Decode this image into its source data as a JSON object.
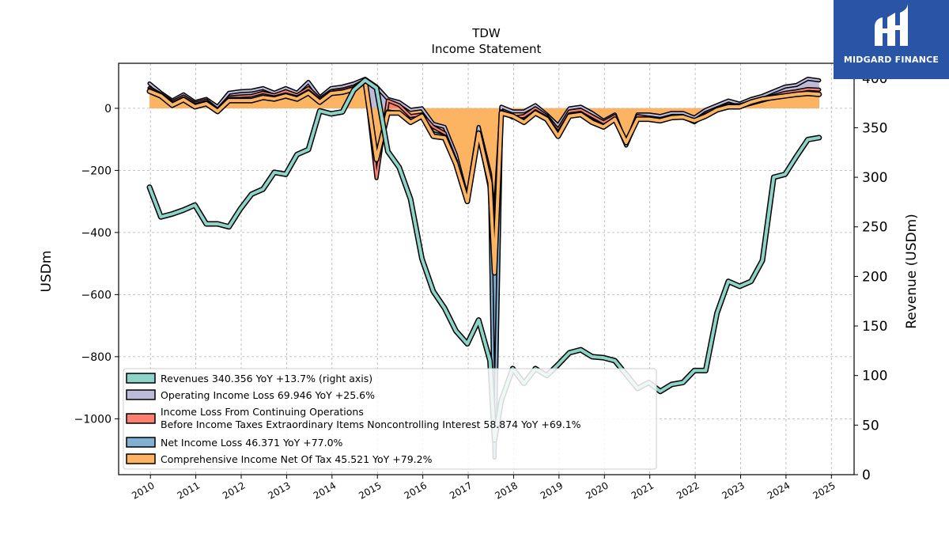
{
  "chart_data": {
    "type": "line",
    "title": "TDW",
    "subtitle": "Income Statement",
    "ylabel": "USDm",
    "ylabel_right": "Revenue (USDm)",
    "ylim": [
      -1180,
      145
    ],
    "ylim_right": [
      0,
      415
    ],
    "yticks": [
      -1000,
      -800,
      -600,
      -400,
      -200,
      0
    ],
    "yticks_right": [
      0,
      50,
      100,
      150,
      200,
      250,
      300,
      350,
      400
    ],
    "xlim": [
      2009.3,
      2025.5
    ],
    "xticks": [
      2010,
      2011,
      2012,
      2013,
      2014,
      2015,
      2016,
      2017,
      2018,
      2019,
      2020,
      2021,
      2022,
      2023,
      2024,
      2025
    ],
    "grid": true,
    "legend_position": "lower-left",
    "colors": {
      "revenues": "#8dd3c7",
      "operating": "#bebada",
      "pretax": "#fb8072",
      "net": "#80b1d3",
      "comprehensive": "#fdb462"
    },
    "x": [
      2009.98,
      2010.23,
      2010.48,
      2010.73,
      2010.98,
      2011.23,
      2011.48,
      2011.73,
      2011.98,
      2012.23,
      2012.48,
      2012.73,
      2012.98,
      2013.23,
      2013.48,
      2013.73,
      2013.98,
      2014.23,
      2014.48,
      2014.73,
      2014.98,
      2015.23,
      2015.48,
      2015.73,
      2015.98,
      2016.23,
      2016.48,
      2016.73,
      2016.98,
      2017.23,
      2017.48,
      2017.58,
      2017.73,
      2017.98,
      2018.23,
      2018.48,
      2018.73,
      2018.98,
      2019.23,
      2019.48,
      2019.73,
      2019.98,
      2020.23,
      2020.48,
      2020.73,
      2020.98,
      2021.23,
      2021.48,
      2021.73,
      2021.98,
      2022.23,
      2022.48,
      2022.73,
      2022.98,
      2023.23,
      2023.48,
      2023.73,
      2023.98,
      2024.23,
      2024.48,
      2024.73
    ],
    "series": [
      {
        "key": "revenues",
        "name": "Revenues",
        "axis": "right",
        "values": [
          290,
          260,
          263,
          267,
          272,
          253,
          253,
          250,
          268,
          283,
          288,
          305,
          303,
          323,
          328,
          367,
          364,
          366,
          388,
          398,
          390,
          326,
          310,
          278,
          218,
          185,
          168,
          145,
          132,
          156,
          115,
          35,
          75,
          107,
          92,
          107,
          100,
          111,
          123,
          126,
          119,
          118,
          115,
          101,
          87,
          93,
          84,
          91,
          93,
          105,
          105,
          163,
          195,
          190,
          195,
          216,
          300,
          303,
          321,
          338,
          340
        ],
        "legend": "Revenues  340.356 YoY +13.7% (right axis)"
      },
      {
        "key": "operating",
        "name": "Operating Income Loss",
        "axis": "left",
        "values": [
          80,
          50,
          25,
          45,
          20,
          30,
          5,
          50,
          55,
          57,
          65,
          50,
          65,
          50,
          85,
          35,
          65,
          70,
          80,
          95,
          70,
          30,
          20,
          -5,
          0,
          -50,
          -60,
          -150,
          -290,
          -60,
          -210,
          -360,
          5,
          -10,
          -10,
          10,
          -20,
          -55,
          0,
          5,
          -15,
          -40,
          -20,
          -115,
          -20,
          -20,
          -25,
          -15,
          -15,
          -30,
          -5,
          10,
          25,
          15,
          30,
          40,
          55,
          70,
          75,
          95,
          90
        ],
        "legend": "Operating Income Loss  69.946 YoY +25.6%"
      },
      {
        "key": "pretax",
        "name": "Income Loss From Continuing Operations Before Income Taxes Extraordinary Items Noncontrolling Interest",
        "axis": "left",
        "values": [
          65,
          45,
          20,
          38,
          15,
          25,
          -5,
          35,
          38,
          40,
          50,
          42,
          55,
          42,
          65,
          30,
          55,
          60,
          70,
          90,
          -225,
          25,
          10,
          -25,
          -20,
          -60,
          -80,
          -170,
          -300,
          -80,
          -260,
          -410,
          -10,
          -30,
          -25,
          0,
          -25,
          -70,
          -10,
          -5,
          -25,
          -45,
          -25,
          -110,
          -25,
          -30,
          -35,
          -28,
          -25,
          -40,
          -15,
          0,
          10,
          10,
          20,
          30,
          40,
          50,
          55,
          62,
          60
        ],
        "legend_line1": "Income Loss From Continuing Operations",
        "legend_line2": "Before Income Taxes Extraordinary Items Noncontrolling Interest  58.874 YoY +69.1%"
      },
      {
        "key": "net",
        "name": "Net Income Loss",
        "axis": "left",
        "values": [
          60,
          42,
          15,
          32,
          10,
          20,
          -10,
          30,
          30,
          32,
          42,
          35,
          45,
          35,
          55,
          25,
          50,
          55,
          65,
          88,
          -160,
          -10,
          -15,
          -40,
          -30,
          -80,
          -90,
          -180,
          -300,
          -90,
          -250,
          -1125,
          -10,
          -25,
          -40,
          -10,
          -30,
          -80,
          -20,
          -15,
          -40,
          -60,
          -35,
          -120,
          -35,
          -35,
          -40,
          -30,
          -28,
          -45,
          -20,
          -5,
          10,
          5,
          15,
          25,
          35,
          40,
          45,
          48,
          45
        ],
        "legend": "Net Income Loss  46.371 YoY +77.0%"
      },
      {
        "key": "comprehensive",
        "name": "Comprehensive Income Net Of Tax",
        "axis": "left",
        "values": [
          55,
          40,
          10,
          28,
          5,
          15,
          -10,
          25,
          25,
          25,
          35,
          30,
          40,
          30,
          50,
          20,
          48,
          52,
          62,
          88,
          -165,
          -15,
          -15,
          -45,
          -25,
          -90,
          -95,
          -180,
          -300,
          -80,
          -240,
          -530,
          -15,
          -25,
          -45,
          -15,
          -35,
          -90,
          -25,
          -20,
          -45,
          -60,
          -35,
          -110,
          -35,
          -35,
          -40,
          -30,
          -28,
          -40,
          -25,
          -5,
          5,
          5,
          20,
          30,
          35,
          40,
          45,
          48,
          45
        ],
        "legend": "Comprehensive Income Net Of Tax  45.521 YoY +79.2%"
      }
    ]
  },
  "brand": {
    "name": "MIDGARD FINANCE"
  }
}
